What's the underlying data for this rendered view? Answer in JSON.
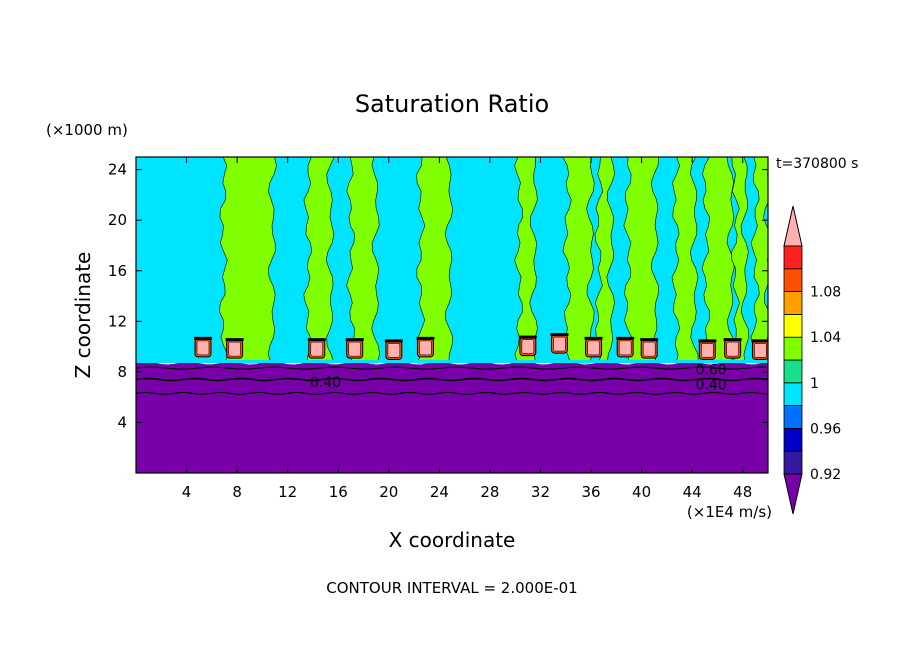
{
  "chart_data": {
    "type": "heatmap",
    "title": "Saturation Ratio",
    "time_label": "t=370800 s",
    "xlabel": "X coordinate",
    "ylabel": "Z coordinate",
    "x_units": "(×1E4 m/s)",
    "y_units": "(×1000 m)",
    "footer": "CONTOUR INTERVAL = 2.000E-01",
    "xlim": [
      0,
      50
    ],
    "ylim": [
      0,
      25
    ],
    "x_ticks": [
      "4",
      "8",
      "12",
      "16",
      "20",
      "24",
      "28",
      "32",
      "36",
      "40",
      "44",
      "48"
    ],
    "y_ticks": [
      "4",
      "8",
      "12",
      "16",
      "20",
      "24"
    ],
    "colorbar": {
      "levels": [
        {
          "value": 0.9,
          "color": "#7700a8"
        },
        {
          "value": 0.92,
          "color": "#3318a0"
        },
        {
          "value": 0.94,
          "color": "#0000c8"
        },
        {
          "value": 0.96,
          "color": "#0070ff"
        },
        {
          "value": 0.98,
          "color": "#00e4ff"
        },
        {
          "value": 1.0,
          "color": "#18e088"
        },
        {
          "value": 1.02,
          "color": "#80ff00"
        },
        {
          "value": 1.04,
          "color": "#ffff00"
        },
        {
          "value": 1.06,
          "color": "#ffa000"
        },
        {
          "value": 1.08,
          "color": "#ff5000"
        },
        {
          "value": 1.1,
          "color": "#ff2020"
        },
        {
          "value": 1.12,
          "color": "#ffb0b0"
        }
      ],
      "labels": [
        "0.92",
        "0.96",
        "1",
        "1.04",
        "1.08"
      ]
    },
    "contour_labels": [
      {
        "text": "0.40",
        "x": 15.0,
        "z": 7.2
      },
      {
        "text": "0.60",
        "x": 45.5,
        "z": 8.2
      },
      {
        "text": "0.40",
        "x": 45.5,
        "z": 7.0
      }
    ],
    "regions": {
      "dry_layer_top": 8.7,
      "moist_base_value": 0.98,
      "supersaturated_columns": [
        {
          "x0": 6.9,
          "x1": 10.8
        },
        {
          "x0": 13.6,
          "x1": 15.4
        },
        {
          "x0": 17.0,
          "x1": 19.0
        },
        {
          "x0": 22.5,
          "x1": 24.8
        },
        {
          "x0": 30.3,
          "x1": 31.5
        },
        {
          "x0": 34.1,
          "x1": 36.0
        },
        {
          "x0": 36.6,
          "x1": 37.6
        },
        {
          "x0": 38.9,
          "x1": 41.1
        },
        {
          "x0": 42.7,
          "x1": 44.2
        },
        {
          "x0": 45.1,
          "x1": 47.1
        },
        {
          "x0": 47.4,
          "x1": 48.2
        },
        {
          "x0": 49.0,
          "x1": 50.0
        }
      ],
      "cloud_cells": [
        {
          "x": 5.3,
          "z": 9.9
        },
        {
          "x": 7.8,
          "z": 9.8
        },
        {
          "x": 14.3,
          "z": 9.8
        },
        {
          "x": 17.3,
          "z": 9.8
        },
        {
          "x": 20.4,
          "z": 9.7
        },
        {
          "x": 22.9,
          "z": 9.9
        },
        {
          "x": 31.0,
          "z": 10.0
        },
        {
          "x": 33.5,
          "z": 10.2
        },
        {
          "x": 36.2,
          "z": 9.9
        },
        {
          "x": 38.7,
          "z": 9.9
        },
        {
          "x": 40.6,
          "z": 9.8
        },
        {
          "x": 45.2,
          "z": 9.7
        },
        {
          "x": 47.2,
          "z": 9.8
        },
        {
          "x": 49.4,
          "z": 9.7
        }
      ]
    }
  }
}
